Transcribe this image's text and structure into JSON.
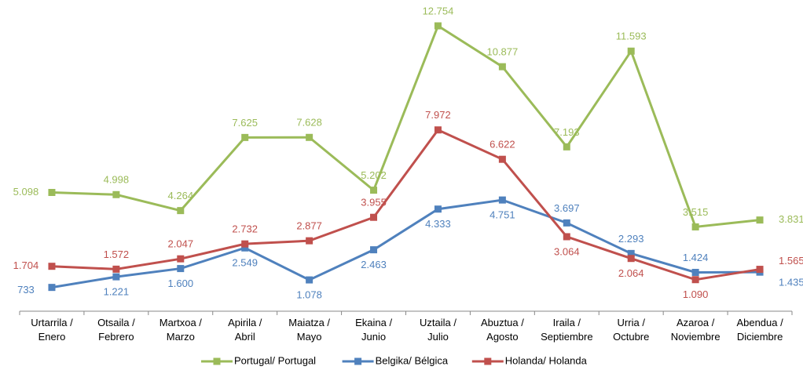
{
  "chart_data": {
    "type": "line",
    "categories": [
      "Urtarrila /\nEnero",
      "Otsaila /\nFebrero",
      "Martxoa /\nMarzo",
      "Apirila /\nAbril",
      "Maiatza /\nMayo",
      "Ekaina /\nJunio",
      "Uztaila /\nJulio",
      "Abuztua /\nAgosto",
      "Iraila /\nSeptiembre",
      "Urria /\nOctubre",
      "Azaroa /\nNoviembre",
      "Abendua /\nDiciembre"
    ],
    "series": [
      {
        "name": "Portugal/ Portugal",
        "color": "#9bbb59",
        "values": [
          5098,
          4998,
          4264,
          7625,
          7628,
          5202,
          12754,
          10877,
          7193,
          11593,
          3515,
          3831
        ],
        "value_labels": [
          "5.098",
          "4.998",
          "4.264",
          "7.625",
          "7.628",
          "5.202",
          "12.754",
          "10.877",
          "7.193",
          "11.593",
          "3.515",
          "3.831"
        ]
      },
      {
        "name": "Belgika/ Bélgica",
        "color": "#4f81bd",
        "values": [
          733,
          1221,
          1600,
          2549,
          1078,
          2463,
          4333,
          4751,
          3697,
          2293,
          1424,
          1435
        ],
        "value_labels": [
          "733",
          "1.221",
          "1.600",
          "2.549",
          "1.078",
          "2.463",
          "4.333",
          "4.751",
          "3.697",
          "2.293",
          "1.424",
          "1.435"
        ]
      },
      {
        "name": "Holanda/ Holanda",
        "color": "#c0504d",
        "values": [
          1704,
          1572,
          2047,
          2732,
          2877,
          3955,
          7972,
          6622,
          3064,
          2064,
          1090,
          1565
        ],
        "value_labels": [
          "1.704",
          "1.572",
          "2.047",
          "2.732",
          "2.877",
          "3.955",
          "7.972",
          "6.622",
          "3.064",
          "2.064",
          "1.090",
          "1.565"
        ]
      }
    ],
    "legend": "bottom"
  }
}
